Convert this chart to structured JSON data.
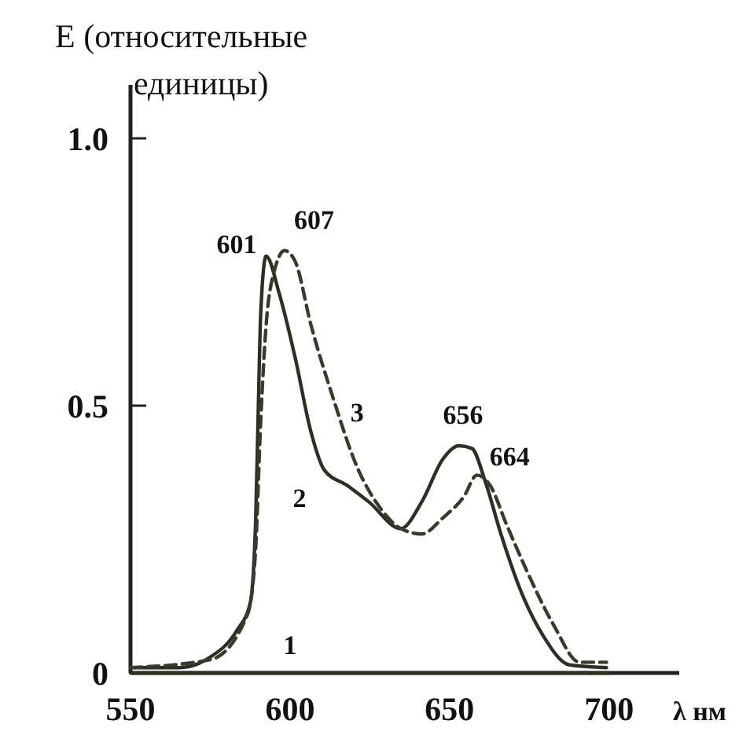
{
  "chart_data": {
    "type": "line",
    "ylabel": "E (относительные единицы)",
    "xlabel": "λ нм",
    "xlim": [
      550,
      722
    ],
    "ylim": [
      0,
      1.1
    ],
    "xticks": [
      550,
      600,
      650,
      700
    ],
    "yticks": [
      0,
      0.5,
      {
        "value": 1,
        "label": "1.0"
      }
    ],
    "grid": false,
    "marker": "none",
    "series": [
      {
        "name": "1",
        "color": "#2e2e22",
        "line_style": "solid",
        "x": [
          550,
          600,
          650,
          700
        ],
        "values": [
          0,
          0,
          0,
          0
        ]
      },
      {
        "name": "2",
        "color": "#2e2e22",
        "line_style": "solid",
        "x": [
          550,
          565.2,
          575.1,
          583.4,
          587.5,
          589.2,
          590.0,
          590.8,
          592.5,
          596.6,
          601.6,
          606.6,
          610.7,
          618.1,
          624.7,
          634.7,
          641.3,
          647.9,
          652.9,
          657.0,
          661.1,
          666.1,
          671.9,
          679.3,
          687.6,
          699.2
        ],
        "values": [
          0.01,
          0.01,
          0.03,
          0.08,
          0.13,
          0.28,
          0.48,
          0.67,
          0.78,
          0.71,
          0.59,
          0.45,
          0.38,
          0.35,
          0.32,
          0.27,
          0.32,
          0.4,
          0.425,
          0.42,
          0.36,
          0.26,
          0.16,
          0.07,
          0.015,
          0.01
        ]
      },
      {
        "name": "3",
        "color": "#3a3a2c",
        "line_style": "dashed",
        "x": [
          550,
          575.1,
          586.7,
          589.2,
          590.8,
          592.5,
          595.0,
          598.3,
          601.6,
          606.6,
          613.2,
          621.4,
          628.1,
          634.7,
          641.3,
          647.9,
          654.5,
          658.6,
          662.8,
          667.7,
          674.3,
          682.6,
          690.8,
          699.2
        ],
        "values": [
          0.01,
          0.025,
          0.11,
          0.23,
          0.47,
          0.65,
          0.75,
          0.79,
          0.77,
          0.65,
          0.52,
          0.38,
          0.31,
          0.27,
          0.26,
          0.29,
          0.33,
          0.37,
          0.35,
          0.28,
          0.19,
          0.09,
          0.02,
          0.02
        ]
      }
    ],
    "annotations": [
      {
        "text": "601",
        "x": 592.5,
        "y": 0.78
      },
      {
        "text": "607",
        "x": 598.3,
        "y": 0.79
      },
      {
        "text": "656",
        "x": 652.9,
        "y": 0.425
      },
      {
        "text": "664",
        "x": 658.6,
        "y": 0.37
      }
    ]
  }
}
